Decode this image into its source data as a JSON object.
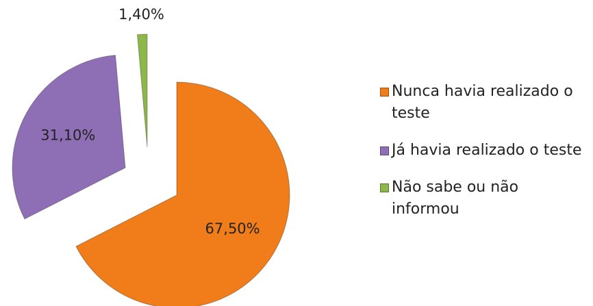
{
  "chart_data": {
    "type": "pie",
    "categories": [
      "Nunca havia realizado o teste",
      "Já havia realizado o teste",
      "Não sabe ou não informou"
    ],
    "values": [
      67.5,
      31.1,
      1.4
    ],
    "value_labels": [
      "67,50%",
      "31,10%",
      "1,40%"
    ],
    "colors": [
      "#f07d1a",
      "#8e6fb5",
      "#8cb84a"
    ],
    "legend": "right"
  }
}
